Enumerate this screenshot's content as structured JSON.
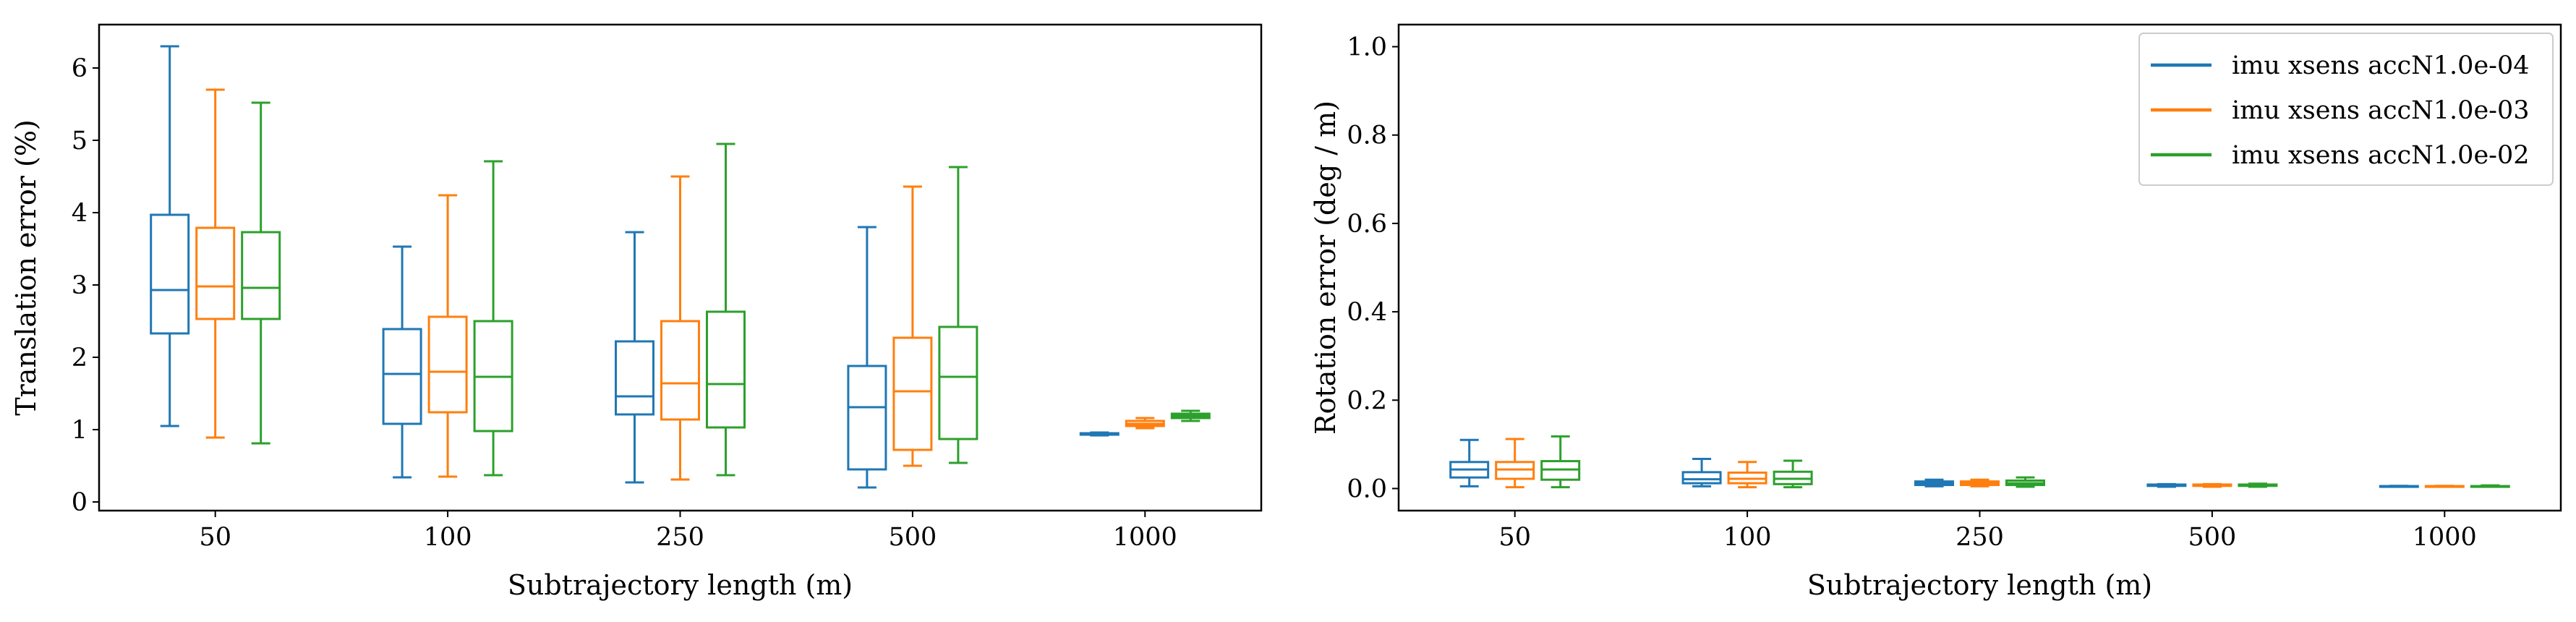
{
  "colors": {
    "series": [
      "#1f77b4",
      "#ff7f0e",
      "#2ca02c"
    ]
  },
  "chart_data": [
    {
      "type": "box",
      "xlabel": "Subtrajectory length (m)",
      "ylabel": "Translation error (%)",
      "ylim": [
        -0.12,
        6.6
      ],
      "yticks": [
        "0",
        "1",
        "2",
        "3",
        "4",
        "5",
        "6"
      ],
      "categories": [
        "50",
        "100",
        "250",
        "500",
        "1000"
      ],
      "grid": false,
      "legend": null,
      "series": [
        {
          "name": "imu xsens accN1.0e-04",
          "boxes": [
            {
              "whislo": 1.05,
              "q1": 2.33,
              "med": 2.93,
              "q3": 3.97,
              "whishi": 6.3
            },
            {
              "whislo": 0.34,
              "q1": 1.08,
              "med": 1.77,
              "q3": 2.39,
              "whishi": 3.53
            },
            {
              "whislo": 0.27,
              "q1": 1.21,
              "med": 1.46,
              "q3": 2.22,
              "whishi": 3.73
            },
            {
              "whislo": 0.2,
              "q1": 0.45,
              "med": 1.31,
              "q3": 1.88,
              "whishi": 3.8
            },
            {
              "whislo": 0.92,
              "q1": 0.93,
              "med": 0.94,
              "q3": 0.95,
              "whishi": 0.96
            }
          ]
        },
        {
          "name": "imu xsens accN1.0e-03",
          "boxes": [
            {
              "whislo": 0.89,
              "q1": 2.53,
              "med": 2.98,
              "q3": 3.79,
              "whishi": 5.7
            },
            {
              "whislo": 0.35,
              "q1": 1.24,
              "med": 1.8,
              "q3": 2.56,
              "whishi": 4.24
            },
            {
              "whislo": 0.31,
              "q1": 1.14,
              "med": 1.64,
              "q3": 2.5,
              "whishi": 4.5
            },
            {
              "whislo": 0.5,
              "q1": 0.72,
              "med": 1.53,
              "q3": 2.27,
              "whishi": 4.36
            },
            {
              "whislo": 1.02,
              "q1": 1.05,
              "med": 1.08,
              "q3": 1.12,
              "whishi": 1.16
            }
          ]
        },
        {
          "name": "imu xsens accN1.0e-02",
          "boxes": [
            {
              "whislo": 0.81,
              "q1": 2.53,
              "med": 2.96,
              "q3": 3.73,
              "whishi": 5.52
            },
            {
              "whislo": 0.37,
              "q1": 0.98,
              "med": 1.73,
              "q3": 2.5,
              "whishi": 4.71
            },
            {
              "whislo": 0.37,
              "q1": 1.03,
              "med": 1.63,
              "q3": 2.63,
              "whishi": 4.95
            },
            {
              "whislo": 0.54,
              "q1": 0.87,
              "med": 1.73,
              "q3": 2.42,
              "whishi": 4.63
            },
            {
              "whislo": 1.12,
              "q1": 1.16,
              "med": 1.19,
              "q3": 1.22,
              "whishi": 1.26
            }
          ]
        }
      ]
    },
    {
      "type": "box",
      "xlabel": "Subtrajectory length (m)",
      "ylabel": "Rotation error (deg / m)",
      "ylim": [
        -0.05,
        1.05
      ],
      "yticks": [
        "0.0",
        "0.2",
        "0.4",
        "0.6",
        "0.8",
        "1.0"
      ],
      "categories": [
        "50",
        "100",
        "250",
        "500",
        "1000"
      ],
      "grid": false,
      "legend": "upper-right",
      "series": [
        {
          "name": "imu xsens accN1.0e-04",
          "boxes": [
            {
              "whislo": 0.005,
              "q1": 0.025,
              "med": 0.043,
              "q3": 0.06,
              "whishi": 0.11
            },
            {
              "whislo": 0.005,
              "q1": 0.012,
              "med": 0.021,
              "q3": 0.037,
              "whishi": 0.067
            },
            {
              "whislo": 0.005,
              "q1": 0.008,
              "med": 0.012,
              "q3": 0.016,
              "whishi": 0.02
            },
            {
              "whislo": 0.004,
              "q1": 0.006,
              "med": 0.007,
              "q3": 0.009,
              "whishi": 0.01
            },
            {
              "whislo": 0.004,
              "q1": 0.0045,
              "med": 0.005,
              "q3": 0.0055,
              "whishi": 0.006
            }
          ]
        },
        {
          "name": "imu xsens accN1.0e-03",
          "boxes": [
            {
              "whislo": 0.003,
              "q1": 0.022,
              "med": 0.043,
              "q3": 0.06,
              "whishi": 0.112
            },
            {
              "whislo": 0.003,
              "q1": 0.012,
              "med": 0.022,
              "q3": 0.036,
              "whishi": 0.06
            },
            {
              "whislo": 0.005,
              "q1": 0.008,
              "med": 0.012,
              "q3": 0.016,
              "whishi": 0.02
            },
            {
              "whislo": 0.004,
              "q1": 0.006,
              "med": 0.007,
              "q3": 0.009,
              "whishi": 0.01
            },
            {
              "whislo": 0.004,
              "q1": 0.0045,
              "med": 0.005,
              "q3": 0.0055,
              "whishi": 0.006
            }
          ]
        },
        {
          "name": "imu xsens accN1.0e-02",
          "boxes": [
            {
              "whislo": 0.003,
              "q1": 0.02,
              "med": 0.043,
              "q3": 0.062,
              "whishi": 0.118
            },
            {
              "whislo": 0.003,
              "q1": 0.01,
              "med": 0.022,
              "q3": 0.038,
              "whishi": 0.063
            },
            {
              "whislo": 0.004,
              "q1": 0.008,
              "med": 0.012,
              "q3": 0.018,
              "whishi": 0.025
            },
            {
              "whislo": 0.004,
              "q1": 0.006,
              "med": 0.007,
              "q3": 0.009,
              "whishi": 0.011
            },
            {
              "whislo": 0.004,
              "q1": 0.0045,
              "med": 0.005,
              "q3": 0.0055,
              "whishi": 0.007
            }
          ]
        }
      ]
    }
  ]
}
